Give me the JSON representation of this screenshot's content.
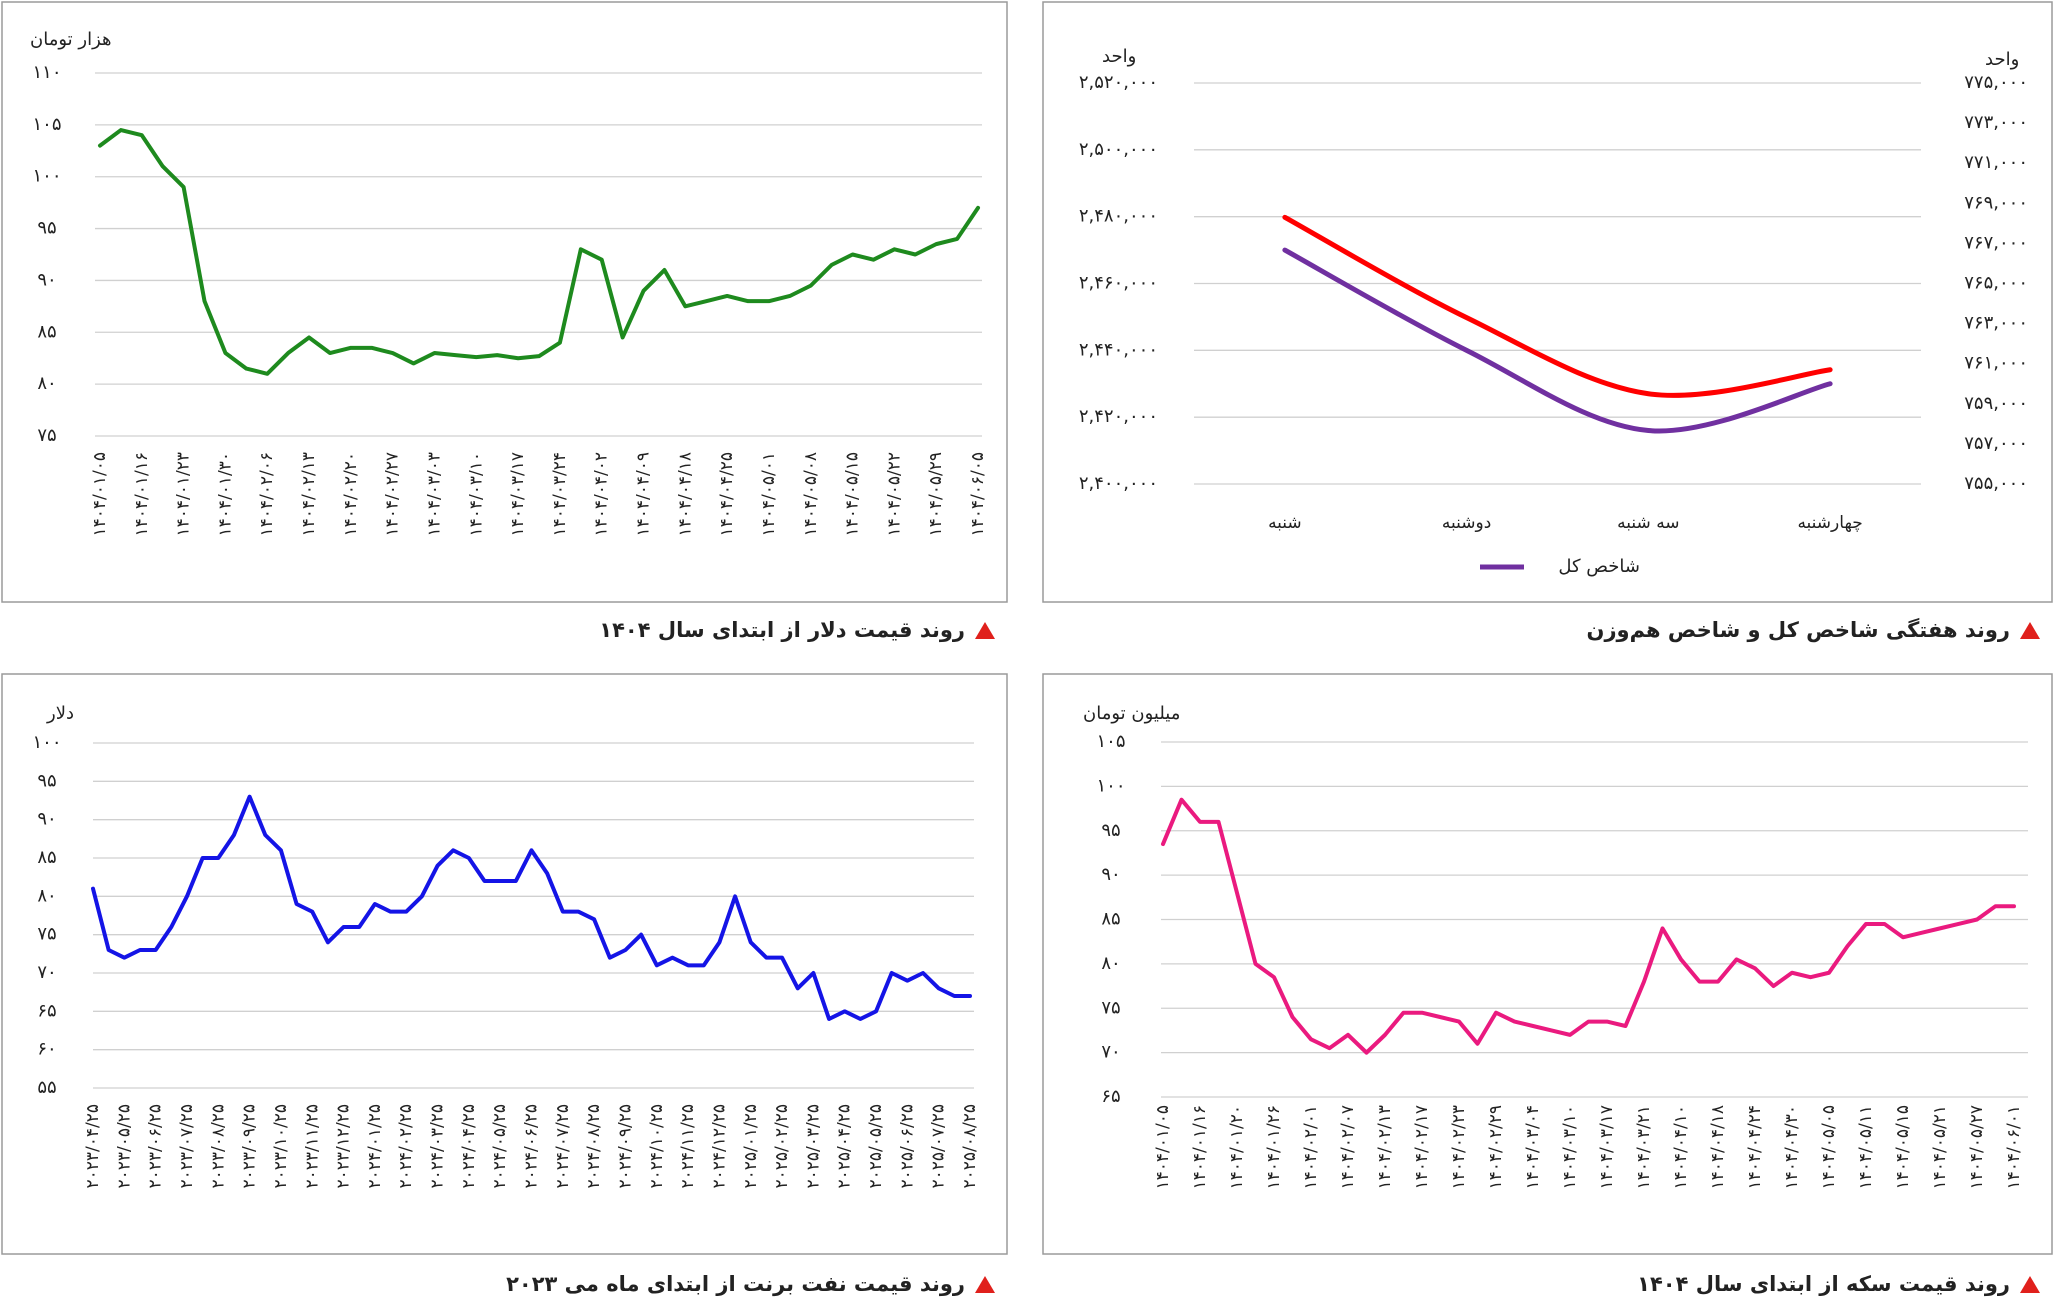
{
  "chart_data": [
    {
      "type": "line",
      "title": "روند قیمت دلار از ابتدای سال ۱۴۰۴",
      "ylabel": "هزار تومان",
      "color": "#1e8a1e",
      "categories": [
        "۱۴۰۴/۰۱/۰۵",
        null,
        "۱۴۰۴/۰۱/۱۶",
        null,
        "۱۴۰۴/۰۱/۲۳",
        null,
        "۱۴۰۴/۰۱/۳۰",
        null,
        "۱۴۰۴/۰۲/۰۶",
        null,
        "۱۴۰۴/۰۲/۱۳",
        null,
        "۱۴۰۴/۰۲/۲۰",
        null,
        "۱۴۰۴/۰۲/۲۷",
        null,
        "۱۴۰۴/۰۳/۰۳",
        null,
        "۱۴۰۴/۰۳/۱۰",
        null,
        "۱۴۰۴/۰۳/۱۷",
        null,
        "۱۴۰۴/۰۳/۲۴",
        null,
        "۱۴۰۴/۰۴/۰۲",
        null,
        "۱۴۰۴/۰۴/۰۹",
        null,
        "۱۴۰۴/۰۴/۱۸",
        null,
        "۱۴۰۴/۰۴/۲۵",
        null,
        "۱۴۰۴/۰۵/۰۱",
        null,
        "۱۴۰۴/۰۵/۰۸",
        null,
        "۱۴۰۴/۰۵/۱۵",
        null,
        "۱۴۰۴/۰۵/۲۲",
        null,
        "۱۴۰۴/۰۵/۲۹",
        null,
        "۱۴۰۴/۰۶/۰۵"
      ],
      "values": [
        103,
        104.5,
        104,
        101,
        99,
        88,
        83,
        81.5,
        81,
        83,
        84.5,
        83,
        83.5,
        83.5,
        83,
        82,
        83,
        82.8,
        82.6,
        82.8,
        82.5,
        82.7,
        84,
        93,
        92,
        84.5,
        89,
        91,
        87.5,
        88,
        88.5,
        88,
        88,
        88.5,
        89.5,
        91.5,
        92.5,
        92,
        93,
        92.5,
        93.5,
        94,
        97
      ],
      "ylim": [
        75,
        110
      ],
      "yticks": [
        {
          "value": 75,
          "label": "۷۵"
        },
        {
          "value": 80,
          "label": "۸۰"
        },
        {
          "value": 85,
          "label": "۸۵"
        },
        {
          "value": 90,
          "label": "۹۰"
        },
        {
          "value": 95,
          "label": "۹۵"
        },
        {
          "value": 100,
          "label": "۱۰۰"
        },
        {
          "value": 105,
          "label": "۱۰۵"
        },
        {
          "value": 110,
          "label": "۱۱۰"
        }
      ],
      "grid": true
    },
    {
      "type": "line",
      "title": "روند هفتگی شاخص کل و شاخص هم‌وزن",
      "ylabel": "واحد",
      "y2label": "واحد",
      "categories": [
        "شنبه",
        "دوشنبه",
        "سه شنبه",
        "چهارشنبه"
      ],
      "series": [
        {
          "name": "شاخص کل",
          "color": "#7030a0",
          "values": [
            2470000,
            2440000,
            2416000,
            2430000
          ]
        },
        {
          "color": "#ff0000",
          "axis": "y2",
          "values": [
            768300,
            763300,
            759500,
            760700
          ]
        }
      ],
      "ylim": [
        2400000,
        2520000
      ],
      "yticks": [
        {
          "value": 2400000,
          "label": "۲,۴۰۰,۰۰۰"
        },
        {
          "value": 2420000,
          "label": "۲,۴۲۰,۰۰۰"
        },
        {
          "value": 2440000,
          "label": "۲,۴۴۰,۰۰۰"
        },
        {
          "value": 2460000,
          "label": "۲,۴۶۰,۰۰۰"
        },
        {
          "value": 2480000,
          "label": "۲,۴۸۰,۰۰۰"
        },
        {
          "value": 2500000,
          "label": "۲,۵۰۰,۰۰۰"
        },
        {
          "value": 2520000,
          "label": "۲,۵۲۰,۰۰۰"
        }
      ],
      "y2lim": [
        755000,
        775000
      ],
      "y2ticks": [
        {
          "value": 755000,
          "label": "۷۵۵,۰۰۰"
        },
        {
          "value": 757000,
          "label": "۷۵۷,۰۰۰"
        },
        {
          "value": 759000,
          "label": "۷۵۹,۰۰۰"
        },
        {
          "value": 761000,
          "label": "۷۶۱,۰۰۰"
        },
        {
          "value": 763000,
          "label": "۷۶۳,۰۰۰"
        },
        {
          "value": 765000,
          "label": "۷۶۵,۰۰۰"
        },
        {
          "value": 767000,
          "label": "۷۶۷,۰۰۰"
        },
        {
          "value": 769000,
          "label": "۷۶۹,۰۰۰"
        },
        {
          "value": 771000,
          "label": "۷۷۱,۰۰۰"
        },
        {
          "value": 773000,
          "label": "۷۷۳,۰۰۰"
        },
        {
          "value": 775000,
          "label": "۷۷۵,۰۰۰"
        }
      ],
      "grid": true
    },
    {
      "type": "line",
      "title": "روند قیمت نفت برنت از ابتدای ماه می ۲۰۲۳",
      "ylabel": "دلار",
      "color": "#1414e6",
      "categories": [
        "۲۰۲۳/۰۴/۲۵",
        null,
        "۲۰۲۳/۰۵/۲۵",
        null,
        "۲۰۲۳/۰۶/۲۵",
        null,
        "۲۰۲۳/۰۷/۲۵",
        null,
        "۲۰۲۳/۰۸/۲۵",
        null,
        "۲۰۲۳/۰۹/۲۵",
        null,
        "۲۰۲۳/۱۰/۲۵",
        null,
        "۲۰۲۳/۱۱/۲۵",
        null,
        "۲۰۲۳/۱۲/۲۵",
        null,
        "۲۰۲۴/۰۱/۲۵",
        null,
        "۲۰۲۴/۰۲/۲۵",
        null,
        "۲۰۲۴/۰۳/۲۵",
        null,
        "۲۰۲۴/۰۴/۲۵",
        null,
        "۲۰۲۴/۰۵/۲۵",
        null,
        "۲۰۲۴/۰۶/۲۵",
        null,
        "۲۰۲۴/۰۷/۲۵",
        null,
        "۲۰۲۴/۰۸/۲۵",
        null,
        "۲۰۲۴/۰۹/۲۵",
        null,
        "۲۰۲۴/۱۰/۲۵",
        null,
        "۲۰۲۴/۱۱/۲۵",
        null,
        "۲۰۲۴/۱۲/۲۵",
        null,
        "۲۰۲۵/۰۱/۲۵",
        null,
        "۲۰۲۵/۰۲/۲۵",
        null,
        "۲۰۲۵/۰۳/۲۵",
        null,
        "۲۰۲۵/۰۴/۲۵",
        null,
        "۲۰۲۵/۰۵/۲۵",
        null,
        "۲۰۲۵/۰۶/۲۵",
        null,
        "۲۰۲۵/۰۷/۲۵",
        null,
        "۲۰۲۵/۰۸/۲۵"
      ],
      "values": [
        81,
        73,
        72,
        73,
        73,
        76,
        80,
        85,
        85,
        88,
        93,
        88,
        86,
        79,
        78,
        74,
        76,
        76,
        79,
        78,
        78,
        80,
        84,
        86,
        85,
        82,
        82,
        82,
        86,
        83,
        78,
        78,
        77,
        72,
        73,
        75,
        71,
        72,
        71,
        71,
        74,
        80,
        74,
        72,
        72,
        68,
        70,
        64,
        65,
        64,
        65,
        70,
        69,
        70,
        68,
        67,
        67
      ],
      "ylim": [
        55,
        100
      ],
      "yticks": [
        {
          "value": 55,
          "label": "۵۵"
        },
        {
          "value": 60,
          "label": "۶۰"
        },
        {
          "value": 65,
          "label": "۶۵"
        },
        {
          "value": 70,
          "label": "۷۰"
        },
        {
          "value": 75,
          "label": "۷۵"
        },
        {
          "value": 80,
          "label": "۸۰"
        },
        {
          "value": 85,
          "label": "۸۵"
        },
        {
          "value": 90,
          "label": "۹۰"
        },
        {
          "value": 95,
          "label": "۹۵"
        },
        {
          "value": 100,
          "label": "۱۰۰"
        }
      ],
      "grid": true
    },
    {
      "type": "line",
      "title": "روند قیمت سکه از ابتدای سال ۱۴۰۴",
      "ylabel": "میلیون تومان",
      "color": "#ea1a7f",
      "categories": [
        "۱۴۰۴/۰۱/۰۵",
        null,
        "۱۴۰۴/۰۱/۱۶",
        null,
        "۱۴۰۴/۰۱/۲۰",
        null,
        "۱۴۰۴/۰۱/۲۶",
        null,
        "۱۴۰۴/۰۲/۰۱",
        null,
        "۱۴۰۴/۰۲/۰۷",
        null,
        "۱۴۰۴/۰۲/۱۳",
        null,
        "۱۴۰۴/۰۲/۱۷",
        null,
        "۱۴۰۴/۰۲/۲۳",
        null,
        "۱۴۰۴/۰۲/۲۹",
        null,
        "۱۴۰۴/۰۳/۰۴",
        null,
        "۱۴۰۴/۰۳/۱۰",
        null,
        "۱۴۰۴/۰۳/۱۷",
        null,
        "۱۴۰۴/۰۳/۲۱",
        null,
        "۱۴۰۴/۰۴/۱۰",
        null,
        "۱۴۰۴/۰۴/۱۸",
        null,
        "۱۴۰۴/۰۴/۲۴",
        null,
        "۱۴۰۴/۰۴/۳۰",
        null,
        "۱۴۰۴/۰۵/۰۵",
        null,
        "۱۴۰۴/۰۵/۱۱",
        null,
        "۱۴۰۴/۰۵/۱۵",
        null,
        "۱۴۰۴/۰۵/۲۱",
        null,
        "۱۴۰۴/۰۵/۲۷",
        null,
        "۱۴۰۴/۰۶/۰۱"
      ],
      "values": [
        93.5,
        98.5,
        96,
        96,
        88,
        80,
        78.5,
        74,
        71.5,
        70.5,
        72,
        70,
        72,
        74.5,
        74.5,
        74,
        73.5,
        71,
        74.5,
        73.5,
        73,
        72.5,
        72,
        73.5,
        73.5,
        73,
        78,
        84,
        80.5,
        78,
        78,
        80.5,
        79.5,
        77.5,
        79,
        78.5,
        79,
        82,
        84.5,
        84.5,
        83,
        83.5,
        84,
        84.5,
        85,
        86.5,
        86.5
      ],
      "ylim": [
        65,
        105
      ],
      "yticks": [
        {
          "value": 65,
          "label": "۶۵"
        },
        {
          "value": 70,
          "label": "۷۰"
        },
        {
          "value": 75,
          "label": "۷۵"
        },
        {
          "value": 80,
          "label": "۸۰"
        },
        {
          "value": 85,
          "label": "۸۵"
        },
        {
          "value": 90,
          "label": "۹۰"
        },
        {
          "value": 95,
          "label": "۹۵"
        },
        {
          "value": 100,
          "label": "۱۰۰"
        },
        {
          "value": 105,
          "label": "۱۰۵"
        }
      ],
      "grid": true
    }
  ]
}
